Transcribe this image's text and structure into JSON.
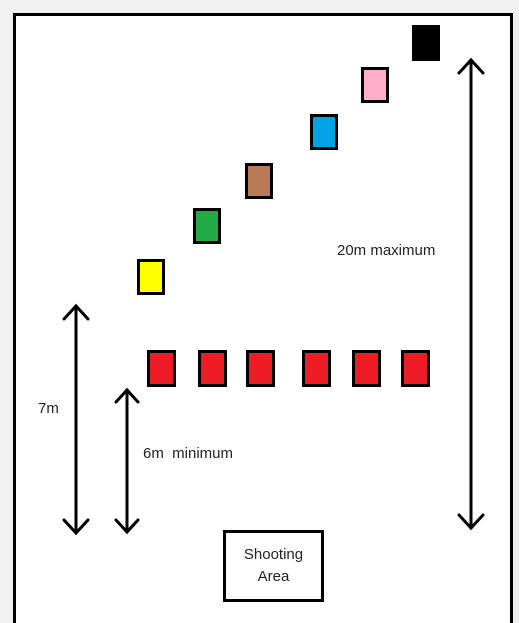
{
  "labels": {
    "max_distance": "20m maximum",
    "seven_m": "7m",
    "min_distance": "6m  minimum",
    "shooting_area_line1": "Shooting",
    "shooting_area_line2": "Area"
  },
  "targets": {
    "stepped": [
      {
        "color": "#ffff00",
        "name": "yellow"
      },
      {
        "color": "#22aa44",
        "name": "green"
      },
      {
        "color": "#b87a57",
        "name": "brown"
      },
      {
        "color": "#00a2e8",
        "name": "blue"
      },
      {
        "color": "#ffaec9",
        "name": "pink"
      },
      {
        "color": "#000000",
        "name": "black"
      }
    ],
    "row_color": "#ed1c24",
    "row_count": 6
  }
}
